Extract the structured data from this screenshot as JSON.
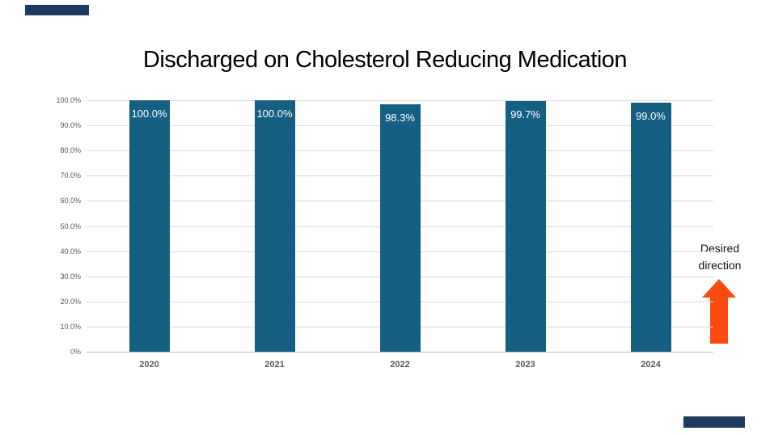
{
  "slide": {
    "title": "Discharged on Cholesterol Reducing Medication",
    "accent_color": "#1E3A5F"
  },
  "annotation": {
    "label": "Desired direction",
    "arrow_icon": "up-arrow",
    "arrow_color": "#FB4A0E"
  },
  "chart_data": {
    "type": "bar",
    "title": "Discharged on Cholesterol Reducing Medication",
    "categories": [
      "2020",
      "2021",
      "2022",
      "2023",
      "2024"
    ],
    "values": [
      100.0,
      100.0,
      98.3,
      99.7,
      99.0
    ],
    "bar_labels": [
      "100.0%",
      "100.0%",
      "98.3%",
      "99.7%",
      "99.0%"
    ],
    "xlabel": "",
    "ylabel": "",
    "ylim": [
      0,
      100
    ],
    "ytick_interval": 10,
    "ytick_labels": [
      "0%",
      "10.0%",
      "20.0%",
      "30.0%",
      "40.0%",
      "50.0%",
      "60.0%",
      "70.0%",
      "80.0%",
      "90.0%",
      "100.0%"
    ],
    "grid": true,
    "legend": "none",
    "bar_color": "#156082",
    "bar_label_color": "#FFFFFF",
    "axis_text_color": "#595959",
    "gridline_color": "#D9D9D9"
  }
}
